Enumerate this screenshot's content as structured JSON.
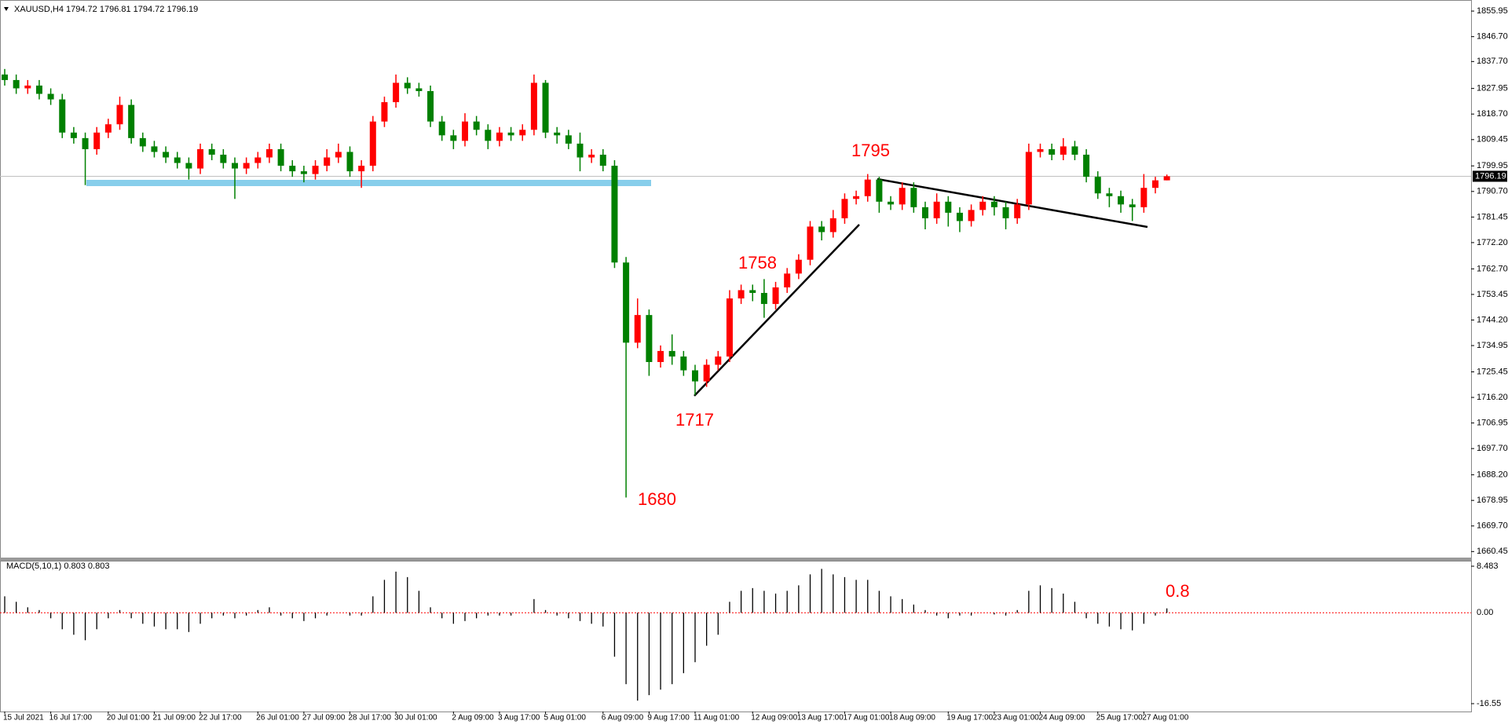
{
  "chart_data": [
    {
      "type": "candlestick",
      "title": "XAUUSD,H4  1794.72 1796.81 1794.72 1796.19",
      "categories": [
        "15 Jul 2021",
        null,
        null,
        null,
        "16 Jul 17:00",
        null,
        null,
        null,
        null,
        "20 Jul 01:00",
        null,
        null,
        null,
        "21 Jul 09:00",
        null,
        null,
        null,
        "22 Jul 17:00",
        null,
        null,
        null,
        null,
        "26 Jul 01:00",
        null,
        null,
        null,
        "27 Jul 09:00",
        null,
        null,
        null,
        "28 Jul 17:00",
        null,
        null,
        null,
        "30 Jul 01:00",
        null,
        null,
        null,
        null,
        "2 Aug 09:00",
        null,
        null,
        null,
        "3 Aug 17:00",
        null,
        null,
        null,
        "5 Aug 01:00",
        null,
        null,
        null,
        null,
        "6 Aug 09:00",
        null,
        null,
        null,
        "9 Aug 17:00",
        null,
        null,
        null,
        "11 Aug 01:00",
        null,
        null,
        null,
        null,
        "12 Aug 09:00",
        null,
        null,
        null,
        "13 Aug 17:00",
        null,
        null,
        null,
        "17 Aug 01:00",
        null,
        null,
        null,
        "18 Aug 09:00",
        null,
        null,
        null,
        null,
        "19 Aug 17:00",
        null,
        null,
        null,
        "23 Aug 01:00",
        null,
        null,
        null,
        "24 Aug 09:00",
        null,
        null,
        null,
        null,
        "25 Aug 17:00",
        null,
        null,
        null,
        "27 Aug 01:00",
        null,
        null
      ],
      "open": [
        1833,
        1831,
        1828,
        1829,
        1826,
        1824,
        1812,
        1810,
        1806,
        1812,
        1815,
        1822,
        1810,
        1807,
        1805,
        1803,
        1801,
        1799,
        1806,
        1804,
        1801,
        1799,
        1801,
        1803,
        1806,
        1800,
        1798,
        1797,
        1800,
        1803,
        1805,
        1798,
        1800,
        1816,
        1823,
        1830,
        1828,
        1827,
        1816,
        1811,
        1809,
        1816,
        1813,
        1809,
        1812,
        1811,
        1813,
        1830,
        1812,
        1811,
        1808,
        1803,
        1804,
        1800,
        1765,
        1736,
        1746,
        1729,
        1733,
        1731,
        1726,
        1722,
        1728,
        1731,
        1752,
        1755,
        1754,
        1750,
        1756,
        1761,
        1766,
        1778,
        1776,
        1781,
        1788,
        1789,
        1795,
        1787,
        1786,
        1792,
        1785,
        1781,
        1787,
        1783,
        1780,
        1784,
        1787,
        1785,
        1781,
        1786,
        1805,
        1806,
        1804,
        1807,
        1804,
        1796,
        1790,
        1789,
        1786,
        1785,
        1792,
        1794.72
      ],
      "high": [
        1835,
        1833,
        1831,
        1831,
        1828,
        1826,
        1814,
        1812,
        1814,
        1817,
        1825,
        1824,
        1812,
        1809,
        1807,
        1805,
        1803,
        1808,
        1808,
        1806,
        1803,
        1803,
        1805,
        1808,
        1808,
        1802,
        1800,
        1802,
        1806,
        1808,
        1807,
        1802,
        1818,
        1825,
        1833,
        1832,
        1830,
        1829,
        1818,
        1813,
        1819,
        1818,
        1815,
        1814,
        1814,
        1815,
        1833,
        1831,
        1814,
        1813,
        1812,
        1806,
        1806,
        1802,
        1767,
        1752,
        1748,
        1735,
        1739,
        1733,
        1728,
        1730,
        1733,
        1755,
        1757,
        1757,
        1759,
        1758,
        1763,
        1768,
        1780,
        1780,
        1784,
        1790,
        1791,
        1797,
        1796,
        1789,
        1794,
        1794,
        1787,
        1790,
        1789,
        1785,
        1786,
        1789,
        1789,
        1787,
        1788,
        1808,
        1808,
        1808,
        1810,
        1809,
        1806,
        1798,
        1792,
        1791,
        1788,
        1797,
        1796,
        1796.81
      ],
      "low": [
        1829,
        1826,
        1826,
        1824,
        1822,
        1810,
        1808,
        1793,
        1804,
        1810,
        1813,
        1808,
        1805,
        1803,
        1801,
        1799,
        1795,
        1797,
        1802,
        1799,
        1788,
        1797,
        1799,
        1801,
        1798,
        1796,
        1794,
        1795,
        1798,
        1801,
        1796,
        1792,
        1798,
        1814,
        1821,
        1826,
        1825,
        1814,
        1809,
        1806,
        1807,
        1811,
        1806,
        1807,
        1809,
        1809,
        1811,
        1810,
        1808,
        1806,
        1798,
        1801,
        1798,
        1763,
        1680,
        1734,
        1724,
        1727,
        1728,
        1724,
        1717,
        1720,
        1726,
        1729,
        1750,
        1751,
        1745,
        1748,
        1754,
        1759,
        1764,
        1773,
        1774,
        1779,
        1786,
        1787,
        1783,
        1784,
        1784,
        1783,
        1777,
        1779,
        1778,
        1776,
        1778,
        1782,
        1782,
        1777,
        1779,
        1784,
        1803,
        1802,
        1802,
        1802,
        1794,
        1788,
        1785,
        1783,
        1780,
        1783,
        1790,
        1794.72
      ],
      "close": [
        1831,
        1828,
        1829,
        1826,
        1824,
        1812,
        1810,
        1806,
        1812,
        1815,
        1822,
        1810,
        1807,
        1805,
        1803,
        1801,
        1799,
        1806,
        1804,
        1801,
        1799,
        1801,
        1803,
        1806,
        1800,
        1798,
        1797,
        1800,
        1803,
        1805,
        1798,
        1800,
        1816,
        1823,
        1830,
        1828,
        1827,
        1816,
        1811,
        1809,
        1816,
        1813,
        1809,
        1812,
        1811,
        1813,
        1830,
        1812,
        1811,
        1808,
        1803,
        1804,
        1800,
        1765,
        1736,
        1746,
        1729,
        1733,
        1731,
        1726,
        1722,
        1728,
        1731,
        1752,
        1755,
        1754,
        1750,
        1756,
        1761,
        1766,
        1778,
        1776,
        1781,
        1788,
        1789,
        1795,
        1787,
        1786,
        1792,
        1785,
        1781,
        1787,
        1783,
        1780,
        1784,
        1787,
        1785,
        1781,
        1786,
        1805,
        1806,
        1804,
        1807,
        1804,
        1796,
        1790,
        1789,
        1786,
        1785,
        1792,
        1794.72,
        1796.19
      ],
      "up_color": "#ff0000",
      "down_color": "#008000",
      "ylim": [
        1659.4,
        1859.1
      ],
      "yticks": [
        1855.95,
        {
          "value": 1846.7,
          "label": "1846.70"
        },
        {
          "value": 1837.7,
          "label": "1837.70"
        },
        1827.95,
        {
          "value": 1818.7,
          "label": "1818.70"
        },
        1809.45,
        1799.95,
        {
          "value": 1790.7,
          "label": "1790.70"
        },
        1781.45,
        {
          "value": 1772.2,
          "label": "1772.20"
        },
        {
          "value": 1762.7,
          "label": "1762.70"
        },
        1753.45,
        {
          "value": 1744.2,
          "label": "1744.20"
        },
        1734.95,
        1725.45,
        {
          "value": 1716.2,
          "label": "1716.20"
        },
        1706.95,
        {
          "value": 1697.7,
          "label": "1697.70"
        },
        {
          "value": 1688.2,
          "label": "1688.20"
        },
        1678.95,
        {
          "value": 1669.7,
          "label": "1669.70"
        },
        1660.45
      ],
      "last_price": 1796.19,
      "annotations": [
        1795,
        1758,
        1717,
        1680
      ]
    },
    {
      "type": "bar",
      "title": "MACD(5,10,1) 0.803 0.803",
      "values": [
        3,
        2,
        1,
        0.5,
        -1,
        -3,
        -4,
        -5,
        -3,
        -1,
        0.5,
        -1,
        -2,
        -2.5,
        -3,
        -3,
        -3.5,
        -2,
        -1,
        -0.5,
        -1,
        -0.5,
        0.5,
        1,
        -0.5,
        -1,
        -1.5,
        -1,
        -0.5,
        0,
        -0.5,
        -0.5,
        3,
        6,
        7.5,
        6.5,
        4,
        1,
        -1,
        -2,
        -1.5,
        -1,
        -0.5,
        -0.5,
        -0.5,
        0,
        2.5,
        0.5,
        -0.5,
        -1,
        -1.5,
        -2,
        -2.5,
        -8,
        -13,
        -16,
        -15,
        -14,
        -13,
        -11,
        -9,
        -6,
        -4,
        2,
        4,
        4.5,
        4,
        3.5,
        4,
        5,
        7,
        8,
        7,
        6.5,
        6,
        6,
        4,
        3,
        2.5,
        1.5,
        0.5,
        -0.5,
        -1,
        -0.5,
        -0.5,
        0,
        -0.3,
        -0.5,
        0.5,
        4,
        5,
        4.5,
        3.5,
        2,
        -1,
        -2,
        -2.5,
        -3,
        -3.2,
        -2,
        -0.5,
        0.803
      ],
      "color": "#000000",
      "ylim": [
        -16.55,
        8.483
      ],
      "yticks": [
        8.483,
        {
          "value": 0,
          "label": "0.00"
        },
        -16.55
      ],
      "annotations": [
        0.8
      ]
    }
  ]
}
